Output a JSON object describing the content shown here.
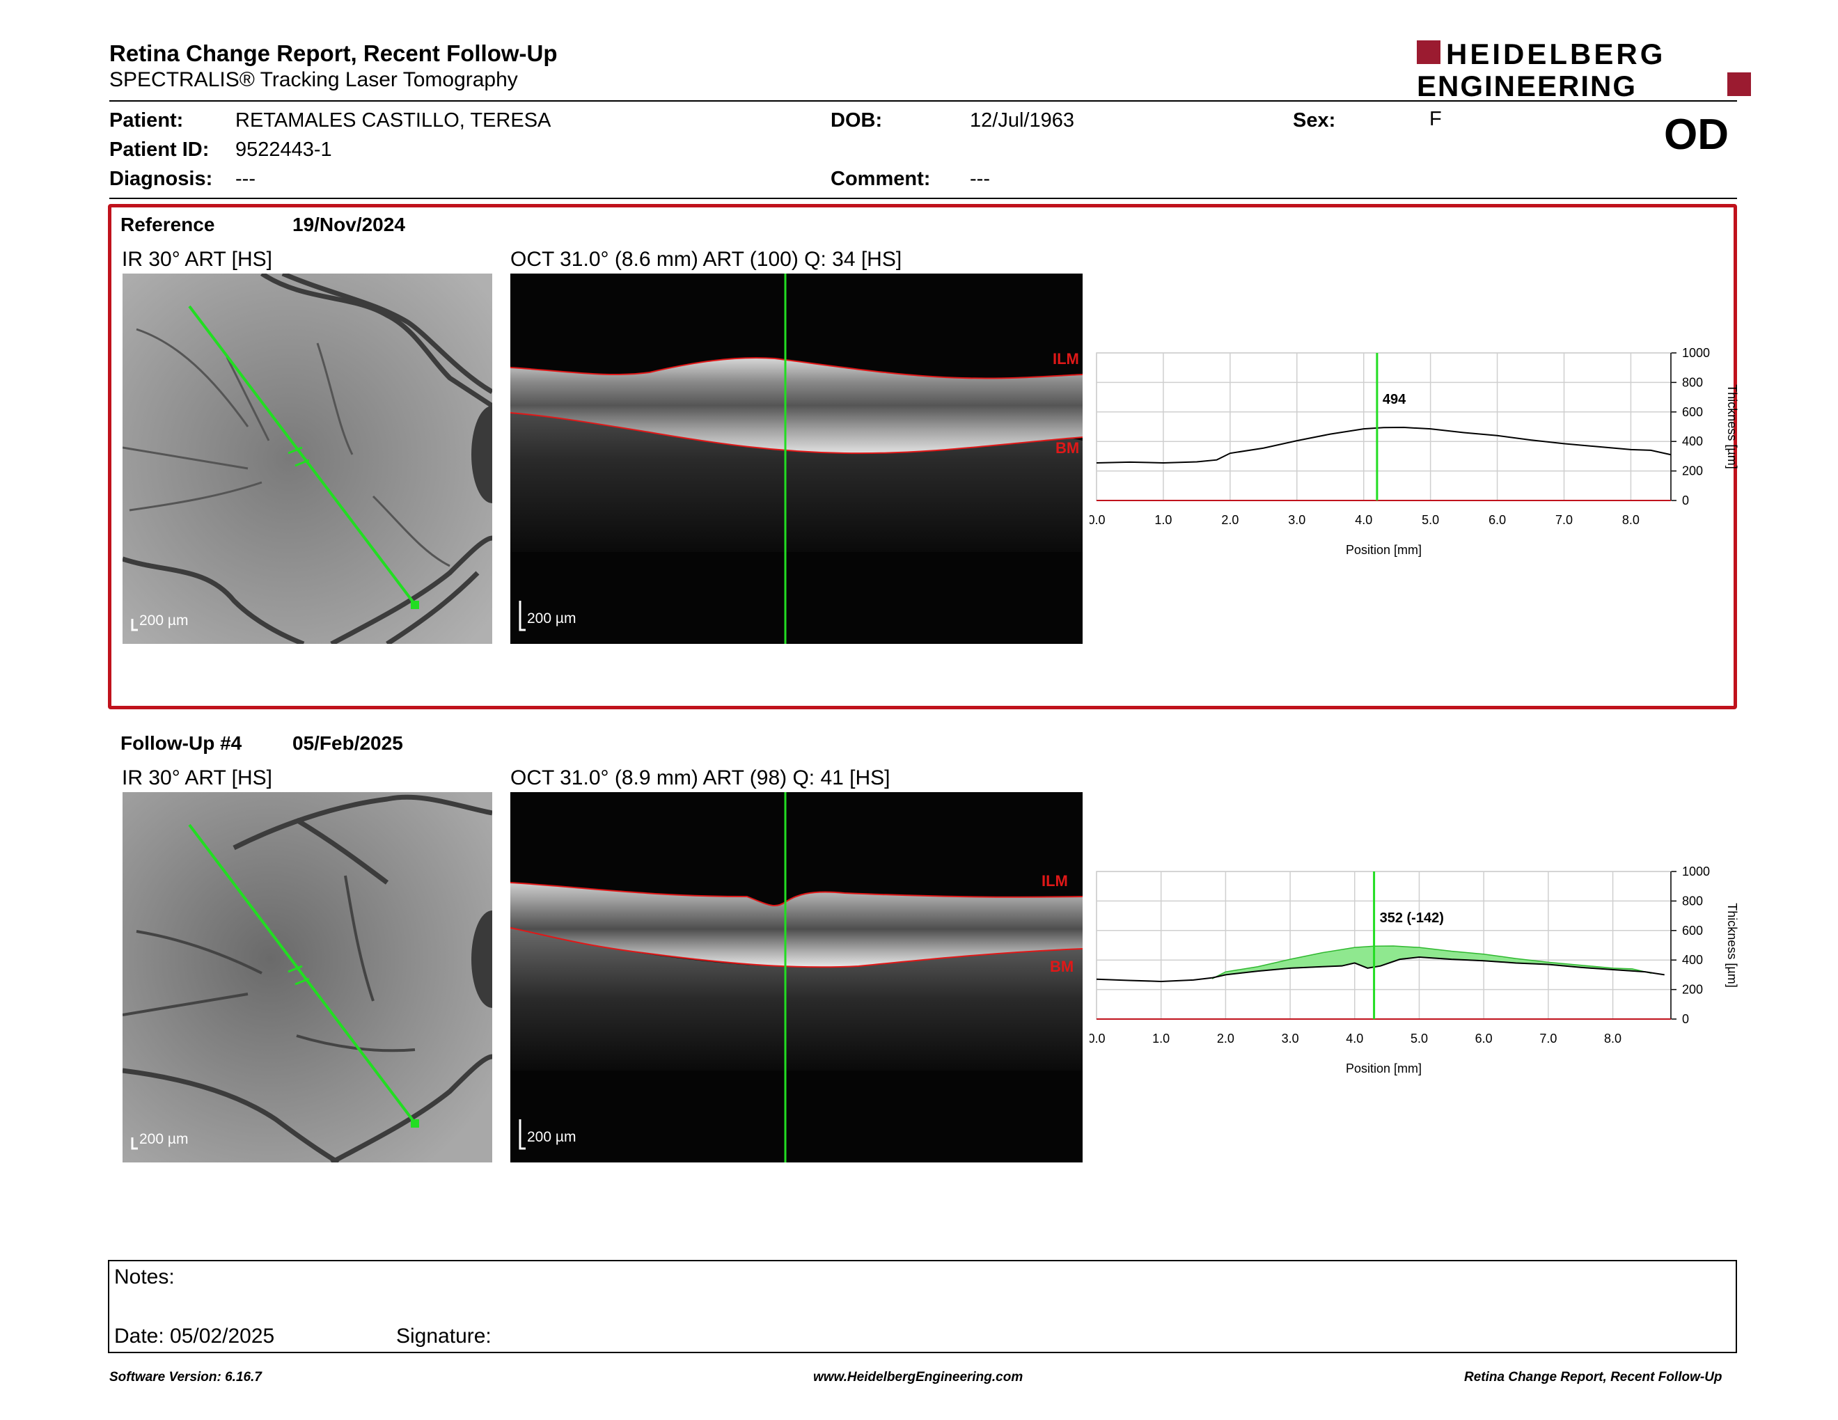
{
  "header": {
    "title": "Retina Change Report, Recent Follow-Up",
    "subtitle": "SPECTRALIS® Tracking Laser Tomography",
    "logo_line1": "HEIDELBERG",
    "logo_line2": "ENGINEERING",
    "eye": "OD",
    "brand_color": "#9b1b30"
  },
  "patient": {
    "patient_label": "Patient:",
    "patient_value": "RETAMALES CASTILLO, TERESA",
    "id_label": "Patient ID:",
    "id_value": "9522443-1",
    "diagnosis_label": "Diagnosis:",
    "diagnosis_value": "---",
    "dob_label": "DOB:",
    "dob_value": "12/Jul/1963",
    "comment_label": "Comment:",
    "comment_value": "---",
    "sex_label": "Sex:",
    "sex_value": "F"
  },
  "reference": {
    "label": "Reference",
    "date": "19/Nov/2024",
    "ir_caption": "IR 30° ART [HS]",
    "oct_caption": "OCT 31.0° (8.6 mm) ART (100) Q: 34 [HS]",
    "scale": "200 µm",
    "ilm": "ILM",
    "bm": "BM"
  },
  "followup": {
    "label": "Follow-Up #4",
    "date": "05/Feb/2025",
    "ir_caption": "IR 30° ART [HS]",
    "oct_caption": "OCT 31.0° (8.9 mm) ART (98) Q: 41 [HS]",
    "scale": "200 µm",
    "ilm": "ILM",
    "bm": "BM"
  },
  "chart_data": [
    {
      "type": "line",
      "xlabel": "Position [mm]",
      "ylabel": "Thickness [µm]",
      "xlim": [
        0,
        8.6
      ],
      "ylim": [
        0,
        1000
      ],
      "x_ticks": [
        "0.0",
        "1.0",
        "2.0",
        "3.0",
        "4.0",
        "5.0",
        "6.0",
        "7.0",
        "8.0"
      ],
      "y_ticks": [
        "0",
        "200",
        "400",
        "600",
        "800",
        "1000"
      ],
      "cursor_x": 4.2,
      "cursor_label": "494",
      "series": [
        {
          "x": [
            0,
            0.5,
            1.0,
            1.5,
            1.8,
            2.0,
            2.5,
            3.0,
            3.5,
            4.0,
            4.3,
            4.6,
            5.0,
            5.5,
            6.0,
            6.5,
            7.0,
            7.5,
            8.0,
            8.3,
            8.6
          ],
          "values": [
            255,
            260,
            255,
            262,
            275,
            320,
            355,
            405,
            450,
            485,
            494,
            495,
            485,
            460,
            440,
            410,
            385,
            365,
            345,
            340,
            310
          ]
        }
      ]
    },
    {
      "type": "area",
      "xlabel": "Position [mm]",
      "ylabel": "Thickness [µm]",
      "xlim": [
        0,
        8.9
      ],
      "ylim": [
        0,
        1000
      ],
      "x_ticks": [
        "0.0",
        "1.0",
        "2.0",
        "3.0",
        "4.0",
        "5.0",
        "6.0",
        "7.0",
        "8.0"
      ],
      "y_ticks": [
        "0",
        "200",
        "400",
        "600",
        "800",
        "1000"
      ],
      "cursor_x": 4.3,
      "cursor_label": "352 (-142)",
      "series": [
        {
          "x": [
            0,
            0.5,
            1.0,
            1.5,
            1.8,
            2.0,
            2.5,
            3.0,
            3.5,
            4.0,
            4.3,
            4.6,
            5.0,
            5.5,
            6.0,
            6.5,
            7.0,
            7.5,
            8.0,
            8.3,
            8.6
          ],
          "values": [
            255,
            260,
            255,
            262,
            275,
            320,
            355,
            405,
            450,
            485,
            494,
            495,
            485,
            460,
            440,
            410,
            385,
            365,
            345,
            340,
            310
          ]
        },
        {
          "x": [
            0,
            0.5,
            1.0,
            1.5,
            1.8,
            2.0,
            2.5,
            3.0,
            3.5,
            3.8,
            4.0,
            4.2,
            4.4,
            4.7,
            5.0,
            5.5,
            6.0,
            6.5,
            7.0,
            7.5,
            8.0,
            8.5,
            8.8
          ],
          "values": [
            270,
            262,
            255,
            265,
            280,
            300,
            325,
            345,
            355,
            360,
            380,
            345,
            360,
            405,
            420,
            405,
            395,
            380,
            370,
            350,
            335,
            320,
            300
          ]
        }
      ]
    }
  ],
  "notes": {
    "notes_label": "Notes:",
    "date_label": "Date: 05/02/2025",
    "signature_label": "Signature:"
  },
  "footer": {
    "left": "Software Version: 6.16.7",
    "center": "www.HeidelbergEngineering.com",
    "right": "Retina Change Report, Recent Follow-Up"
  }
}
